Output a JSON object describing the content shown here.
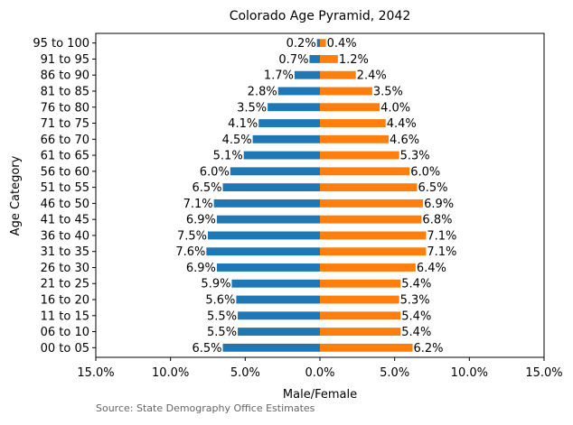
{
  "chart_data": {
    "type": "bar",
    "orientation": "horizontal",
    "title": "Colorado Age Pyramid, 2042",
    "xlabel": "Male/Female",
    "ylabel": "Age Category",
    "xlim": [
      -15,
      15
    ],
    "xticks": [
      -15,
      -10,
      -5,
      0,
      5,
      10,
      15
    ],
    "xtick_labels": [
      "15.0%",
      "10.0%",
      "5.0%",
      "0.0%",
      "5.0%",
      "10.0%",
      "15.0%"
    ],
    "grid": false,
    "categories": [
      "00 to 05",
      "06 to 10",
      "11 to 15",
      "16 to 20",
      "21 to 25",
      "26 to 30",
      "31 to 35",
      "36 to 40",
      "41 to 45",
      "46 to 50",
      "51 to 55",
      "56 to 60",
      "61 to 65",
      "66 to 70",
      "71 to 75",
      "76 to 80",
      "81 to 85",
      "86 to 90",
      "91 to 95",
      "95 to 100"
    ],
    "series": [
      {
        "color": "#1f77b4",
        "side": "left",
        "values": [
          6.5,
          5.5,
          5.5,
          5.6,
          5.9,
          6.9,
          7.6,
          7.5,
          6.9,
          7.1,
          6.5,
          6.0,
          5.1,
          4.5,
          4.1,
          3.5,
          2.8,
          1.7,
          0.7,
          0.2
        ],
        "labels": [
          "6.5%",
          "5.5%",
          "5.5%",
          "5.6%",
          "5.9%",
          "6.9%",
          "7.6%",
          "7.5%",
          "6.9%",
          "7.1%",
          "6.5%",
          "6.0%",
          "5.1%",
          "4.5%",
          "4.1%",
          "3.5%",
          "2.8%",
          "1.7%",
          "0.7%",
          "0.2%"
        ]
      },
      {
        "color": "#ff7f0e",
        "side": "right",
        "values": [
          6.2,
          5.4,
          5.4,
          5.3,
          5.4,
          6.4,
          7.1,
          7.1,
          6.8,
          6.9,
          6.5,
          6.0,
          5.3,
          4.6,
          4.4,
          4.0,
          3.5,
          2.4,
          1.2,
          0.4
        ],
        "labels": [
          "6.2%",
          "5.4%",
          "5.4%",
          "5.3%",
          "5.4%",
          "6.4%",
          "7.1%",
          "7.1%",
          "6.8%",
          "6.9%",
          "6.5%",
          "6.0%",
          "5.3%",
          "4.6%",
          "4.4%",
          "4.0%",
          "3.5%",
          "2.4%",
          "1.2%",
          "0.4%"
        ]
      }
    ]
  },
  "source_note": "Source: State Demography Office Estimates"
}
